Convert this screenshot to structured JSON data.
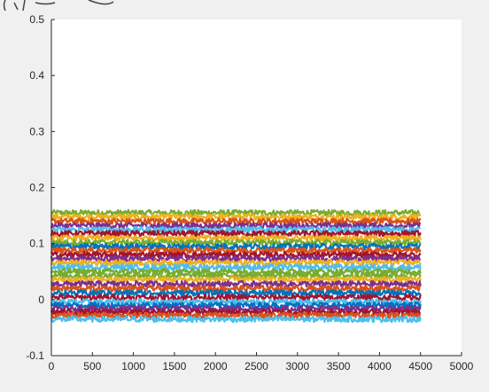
{
  "chart_data": {
    "type": "line",
    "title": "",
    "xlabel": "",
    "ylabel": "",
    "xlim": [
      0,
      5000
    ],
    "ylim": [
      -0.1,
      0.5
    ],
    "xticks": [
      0,
      500,
      1000,
      1500,
      2000,
      2500,
      3000,
      3500,
      4000,
      4500,
      5000
    ],
    "xtick_labels": [
      "0",
      "500",
      "1000",
      "1500",
      "2000",
      "2500",
      "3000",
      "3500",
      "4000",
      "4500",
      "5000"
    ],
    "yticks": [
      -0.1,
      0,
      0.1,
      0.2,
      0.3,
      0.4,
      0.5
    ],
    "ytick_labels": [
      "-0.1",
      "0",
      "0.1",
      "0.2",
      "0.3",
      "0.4",
      "0.5"
    ],
    "grid": false,
    "legend": "none",
    "x_range_of_series": [
      0,
      4500
    ],
    "series": [
      {
        "level": 0.155,
        "color": "#77ac30"
      },
      {
        "level": 0.148,
        "color": "#edb120"
      },
      {
        "level": 0.14,
        "color": "#d95319"
      },
      {
        "level": 0.132,
        "color": "#7e2f8e"
      },
      {
        "level": 0.125,
        "color": "#4dbeee"
      },
      {
        "level": 0.118,
        "color": "#a2142f"
      },
      {
        "level": 0.11,
        "color": "#edb120"
      },
      {
        "level": 0.102,
        "color": "#77ac30"
      },
      {
        "level": 0.095,
        "color": "#0072bd"
      },
      {
        "level": 0.088,
        "color": "#d95319"
      },
      {
        "level": 0.08,
        "color": "#a2142f"
      },
      {
        "level": 0.073,
        "color": "#7e2f8e"
      },
      {
        "level": 0.066,
        "color": "#edb120"
      },
      {
        "level": 0.058,
        "color": "#4dbeee"
      },
      {
        "level": 0.05,
        "color": "#77ac30"
      },
      {
        "level": 0.043,
        "color": "#77ac30"
      },
      {
        "level": 0.036,
        "color": "#edb120"
      },
      {
        "level": 0.028,
        "color": "#7e2f8e"
      },
      {
        "level": 0.02,
        "color": "#d95319"
      },
      {
        "level": 0.012,
        "color": "#0072bd"
      },
      {
        "level": 0.004,
        "color": "#a2142f"
      },
      {
        "level": -0.004,
        "color": "#4dbeee"
      },
      {
        "level": -0.01,
        "color": "#0072bd"
      },
      {
        "level": -0.016,
        "color": "#7e2f8e"
      },
      {
        "level": -0.022,
        "color": "#a2142f"
      },
      {
        "level": -0.028,
        "color": "#d95319"
      },
      {
        "level": -0.035,
        "color": "#4dbeee"
      }
    ]
  }
}
